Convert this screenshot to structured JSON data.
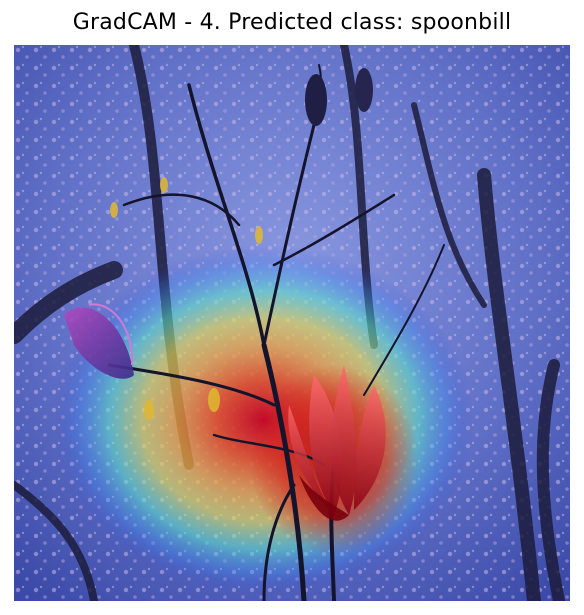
{
  "figure": {
    "title": "GradCAM - 4. Predicted class: spoonbill"
  },
  "image": {
    "subject": "magnolia-flower-under-cherry-blossoms",
    "overlay": "gradcam-jet-heatmap"
  },
  "colors": {
    "background": "#ffffff",
    "sky_overlay": "#5a6fc8",
    "heat_red": "#c8001e",
    "heat_yellow": "#f0dc3c",
    "heat_cyan": "#5ae6dc",
    "branch": "#14142d"
  }
}
